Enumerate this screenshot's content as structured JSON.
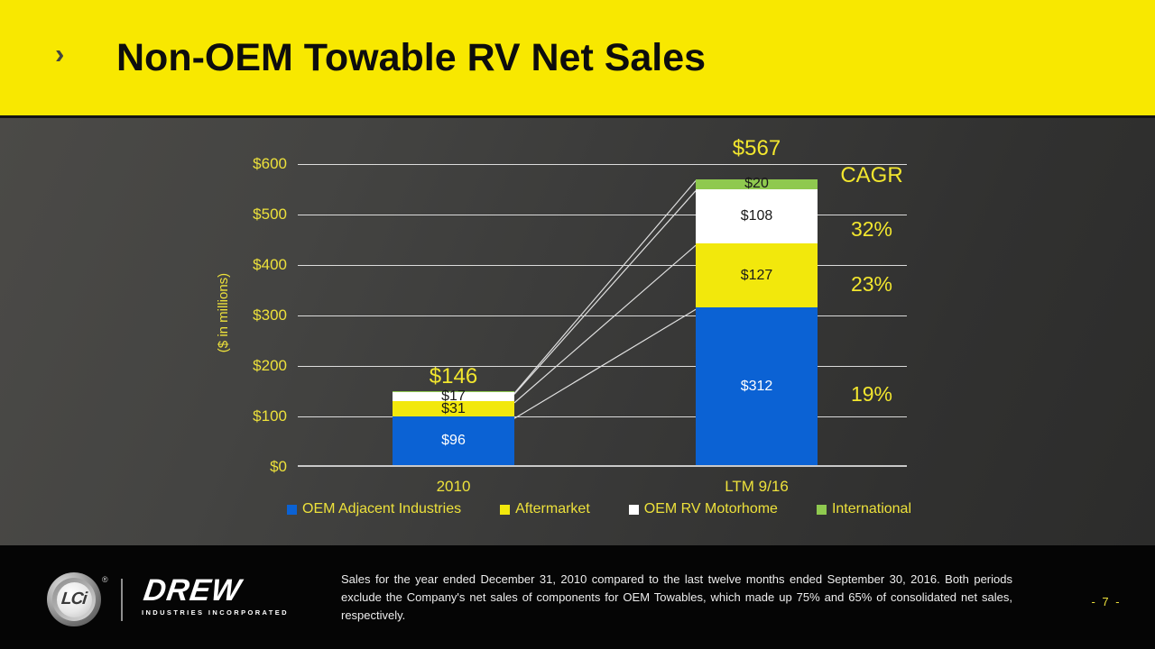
{
  "slide": {
    "title": "Non-OEM Towable RV Net Sales",
    "chevron_glyph": "›",
    "page_number": "- 7 -",
    "footnote": "Sales for the year ended December 31, 2010 compared to the last twelve months ended September 30, 2016. Both periods exclude the Company's net sales of components for OEM Towables, which made up 75% and 65% of consolidated net sales, respectively."
  },
  "branding": {
    "lci_monogram": "LCi",
    "registered_mark": "®",
    "drew_wordmark": "DREW",
    "drew_tagline": "INDUSTRIES INCORPORATED"
  },
  "colors": {
    "header_yellow": "#F8E800",
    "text_yellow": "#EDE13B",
    "bar_blue": "#0B62D4",
    "bar_yellow": "#F2E80C",
    "bar_white": "#FFFFFF",
    "bar_green": "#8FC94F",
    "background_dark": "#3A3A39",
    "footer_black": "#050505"
  },
  "chart_data": {
    "type": "bar",
    "stacked": true,
    "categories": [
      "2010",
      "LTM 9/16"
    ],
    "series": [
      {
        "name": "OEM Adjacent Industries",
        "color": "#0B62D4",
        "label_color": "#FFFFFF",
        "values": [
          96,
          312
        ],
        "labels": [
          "$96",
          "$312"
        ]
      },
      {
        "name": "Aftermarket",
        "color": "#F2E80C",
        "label_color": "#1A1A1A",
        "values": [
          31,
          127
        ],
        "labels": [
          "$31",
          "$127"
        ]
      },
      {
        "name": "OEM RV Motorhome",
        "color": "#FFFFFF",
        "label_color": "#1A1A1A",
        "values": [
          17,
          108
        ],
        "labels": [
          "$17",
          "$108"
        ]
      },
      {
        "name": "International",
        "color": "#8FC94F",
        "label_color": "#1A1A1A",
        "values": [
          2,
          20
        ],
        "labels": [
          "",
          "$20"
        ]
      }
    ],
    "totals": [
      146,
      567
    ],
    "total_labels": [
      "$146",
      "$567"
    ],
    "ylabel": "($ in millions)",
    "ylim": [
      0,
      600
    ],
    "ytick_step": 100,
    "ytick_labels": [
      "$0",
      "$100",
      "$200",
      "$300",
      "$400",
      "$500",
      "$600"
    ],
    "grid": true,
    "series_lines": true,
    "legend_position": "bottom",
    "cagr": {
      "header": "CAGR",
      "values": [
        "32%",
        "23%",
        "19%"
      ]
    }
  }
}
